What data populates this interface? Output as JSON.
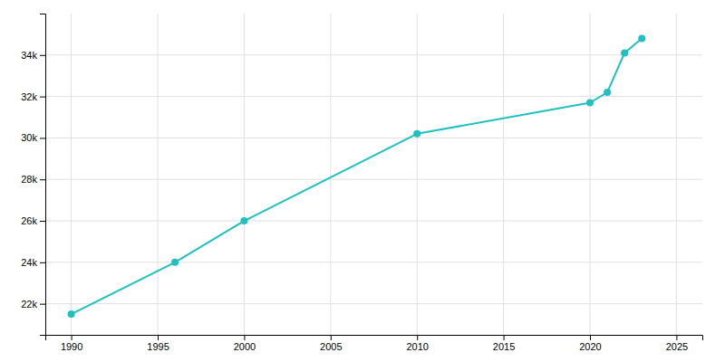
{
  "chart_data": {
    "type": "line",
    "x": [
      1990,
      1996,
      2000,
      2010,
      2020,
      2021,
      2022,
      2023
    ],
    "values": [
      21500,
      24000,
      26000,
      30200,
      31700,
      32200,
      34100,
      34800
    ],
    "color": "#20c0c0",
    "marker": "circle",
    "xlim": [
      1988.5,
      2026.5
    ],
    "ylim": [
      20500,
      36000
    ],
    "xticks": [
      1990,
      1995,
      2000,
      2005,
      2010,
      2015,
      2020,
      2025
    ],
    "yticks": [
      {
        "value": 22000,
        "label": "22k"
      },
      {
        "value": 24000,
        "label": "24k"
      },
      {
        "value": 26000,
        "label": "26k"
      },
      {
        "value": 28000,
        "label": "28k"
      },
      {
        "value": 30000,
        "label": "30k"
      },
      {
        "value": 32000,
        "label": "32k"
      },
      {
        "value": 34000,
        "label": "34k"
      }
    ],
    "grid": true
  }
}
